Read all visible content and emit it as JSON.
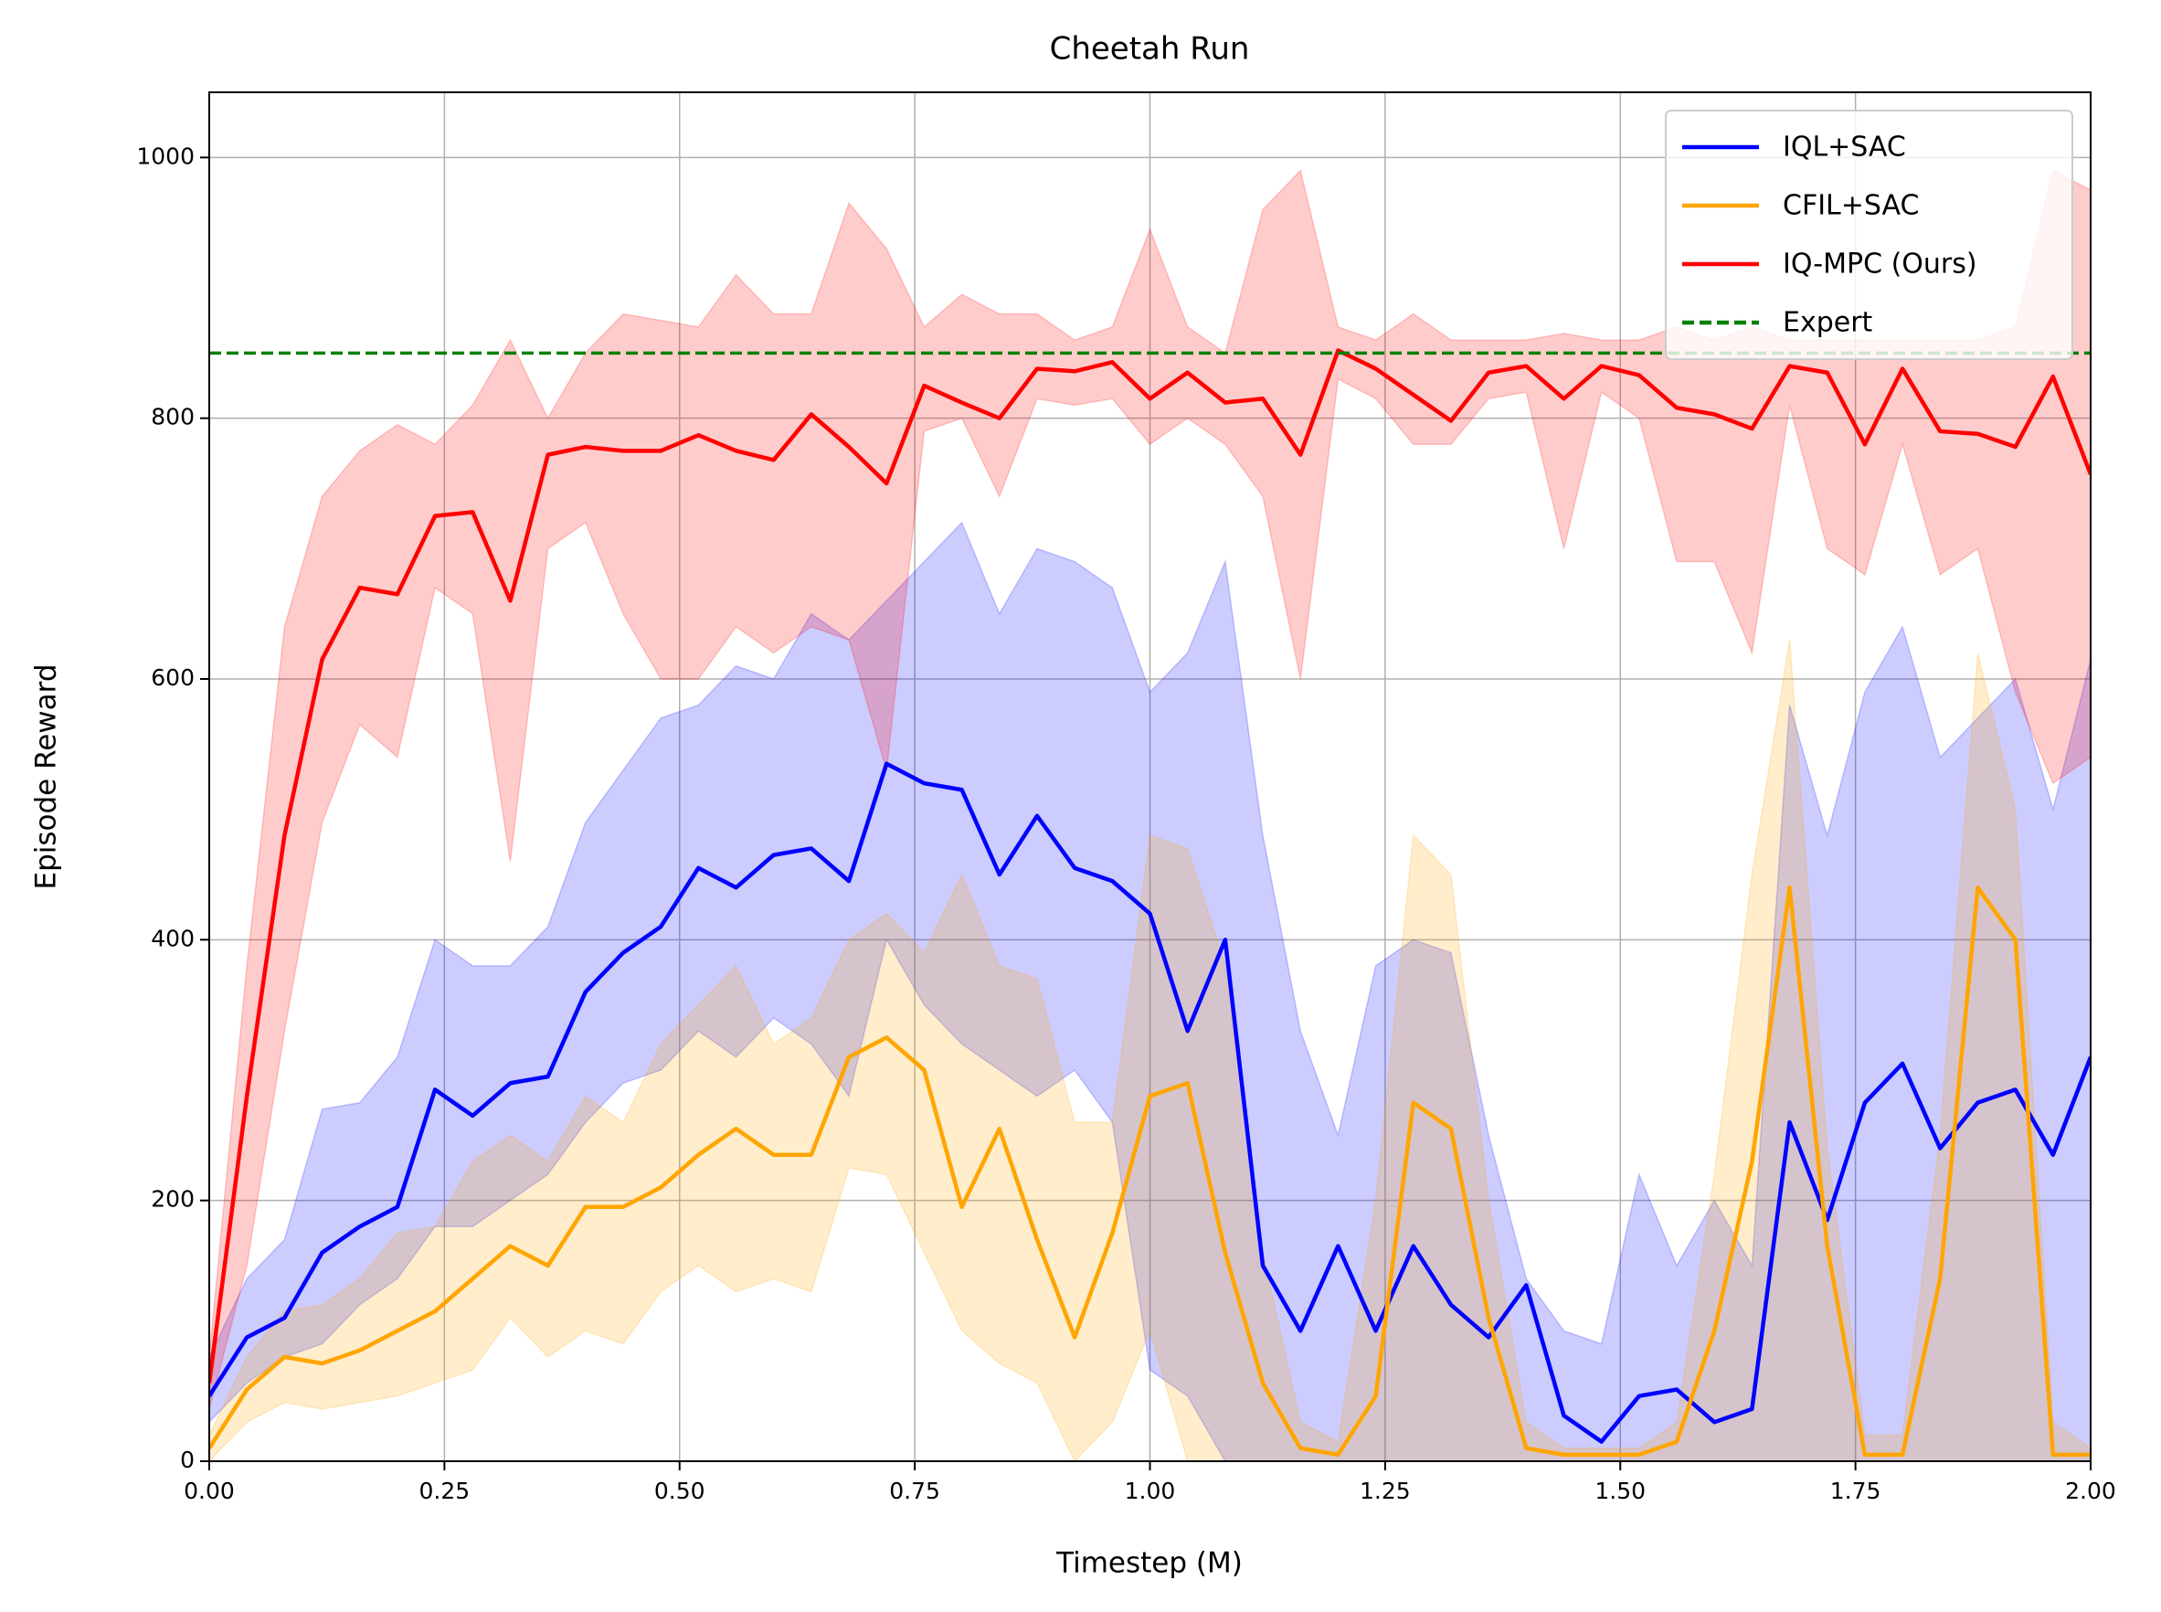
{
  "chart_data": {
    "type": "line",
    "title": "Cheetah Run",
    "xlabel": "Timestep (M)",
    "ylabel": "Episode Reward",
    "x": [
      0,
      0.04,
      0.08,
      0.12,
      0.16,
      0.2,
      0.24,
      0.28,
      0.32,
      0.36,
      0.4,
      0.44,
      0.48,
      0.52,
      0.56,
      0.6,
      0.64,
      0.68,
      0.72,
      0.76,
      0.8,
      0.84,
      0.88,
      0.92,
      0.96,
      1,
      1.04,
      1.08,
      1.12,
      1.16,
      1.2,
      1.24,
      1.28,
      1.32,
      1.36,
      1.4,
      1.44,
      1.48,
      1.52,
      1.56,
      1.6,
      1.64,
      1.68,
      1.72,
      1.76,
      1.8,
      1.84,
      1.88,
      1.92,
      1.96,
      2
    ],
    "series": [
      {
        "name": "IQL+SAC",
        "color": "#0000ff",
        "values": [
          50,
          95,
          110,
          160,
          180,
          195,
          285,
          265,
          290,
          295,
          360,
          390,
          410,
          455,
          440,
          465,
          470,
          445,
          535,
          520,
          515,
          450,
          495,
          455,
          445,
          420,
          330,
          400,
          150,
          100,
          165,
          100,
          165,
          120,
          95,
          135,
          35,
          15,
          50,
          55,
          30,
          40,
          260,
          185,
          275,
          305,
          240,
          275,
          285,
          235,
          310
        ],
        "lower": [
          30,
          60,
          80,
          90,
          120,
          140,
          180,
          180,
          200,
          220,
          260,
          290,
          300,
          330,
          310,
          340,
          320,
          280,
          400,
          350,
          320,
          300,
          280,
          300,
          260,
          70,
          50,
          0,
          0,
          0,
          0,
          0,
          0,
          0,
          0,
          0,
          0,
          0,
          0,
          0,
          0,
          0,
          0,
          0,
          0,
          0,
          0,
          0,
          0,
          0,
          0
        ],
        "upper": [
          80,
          140,
          170,
          270,
          275,
          310,
          400,
          380,
          380,
          410,
          490,
          530,
          570,
          580,
          610,
          600,
          650,
          630,
          660,
          690,
          720,
          650,
          700,
          690,
          670,
          590,
          620,
          690,
          480,
          330,
          250,
          380,
          400,
          390,
          250,
          140,
          100,
          90,
          220,
          150,
          200,
          150,
          580,
          480,
          590,
          640,
          540,
          570,
          600,
          500,
          615
        ]
      },
      {
        "name": "CFIL+SAC",
        "color": "#ffa500",
        "values": [
          10,
          55,
          80,
          75,
          85,
          100,
          115,
          140,
          165,
          150,
          195,
          195,
          210,
          235,
          255,
          235,
          235,
          310,
          325,
          300,
          195,
          255,
          170,
          95,
          175,
          280,
          290,
          160,
          60,
          10,
          5,
          50,
          275,
          255,
          110,
          10,
          5,
          5,
          5,
          15,
          100,
          230,
          440,
          165,
          5,
          5,
          140,
          440,
          400,
          5,
          5
        ],
        "lower": [
          0,
          30,
          45,
          40,
          45,
          50,
          60,
          70,
          110,
          80,
          100,
          90,
          130,
          150,
          130,
          140,
          130,
          225,
          220,
          160,
          100,
          75,
          60,
          0,
          30,
          100,
          0,
          0,
          0,
          0,
          0,
          0,
          0,
          0,
          0,
          0,
          0,
          0,
          0,
          0,
          0,
          0,
          0,
          0,
          0,
          0,
          0,
          0,
          0,
          0,
          0
        ],
        "upper": [
          20,
          80,
          115,
          120,
          140,
          175,
          180,
          230,
          250,
          230,
          280,
          260,
          320,
          350,
          380,
          320,
          340,
          400,
          420,
          390,
          450,
          380,
          370,
          260,
          260,
          480,
          470,
          380,
          160,
          30,
          15,
          200,
          480,
          450,
          200,
          30,
          10,
          10,
          10,
          30,
          220,
          450,
          630,
          240,
          20,
          20,
          250,
          620,
          500,
          30,
          10
        ]
      },
      {
        "name": "IQ-MPC (Ours)",
        "color": "#ff0000",
        "values": [
          60,
          280,
          480,
          615,
          670,
          665,
          725,
          728,
          660,
          772,
          778,
          775,
          775,
          787,
          775,
          768,
          803,
          778,
          750,
          825,
          812,
          800,
          838,
          836,
          843,
          815,
          835,
          812,
          815,
          772,
          852,
          838,
          818,
          798,
          835,
          840,
          815,
          840,
          833,
          808,
          803,
          792,
          840,
          835,
          780,
          838,
          790,
          788,
          778,
          832,
          757
        ],
        "lower": [
          40,
          150,
          330,
          490,
          565,
          540,
          670,
          650,
          460,
          700,
          720,
          650,
          600,
          600,
          640,
          620,
          640,
          630,
          530,
          790,
          800,
          740,
          815,
          810,
          815,
          780,
          800,
          780,
          740,
          600,
          830,
          815,
          780,
          780,
          815,
          820,
          700,
          820,
          800,
          690,
          690,
          620,
          810,
          700,
          680,
          780,
          680,
          700,
          590,
          520,
          540
        ],
        "upper": [
          80,
          380,
          640,
          740,
          775,
          795,
          780,
          810,
          860,
          800,
          850,
          880,
          875,
          870,
          910,
          880,
          880,
          965,
          930,
          870,
          895,
          880,
          880,
          860,
          870,
          945,
          870,
          850,
          960,
          990,
          870,
          860,
          880,
          860,
          860,
          860,
          865,
          860,
          860,
          870,
          860,
          870,
          860,
          860,
          860,
          860,
          860,
          860,
          870,
          990,
          975
        ]
      }
    ],
    "reference_line": {
      "name": "Expert",
      "value": 850,
      "color": "#008000",
      "dashed": true
    },
    "xlim": [
      0,
      2
    ],
    "ylim": [
      0,
      1050
    ],
    "xticks": [
      {
        "value": 0,
        "label": "0.00"
      },
      {
        "value": 0.25,
        "label": "0.25"
      },
      {
        "value": 0.5,
        "label": "0.50"
      },
      {
        "value": 0.75,
        "label": "0.75"
      },
      {
        "value": 1,
        "label": "1.00"
      },
      {
        "value": 1.25,
        "label": "1.25"
      },
      {
        "value": 1.5,
        "label": "1.50"
      },
      {
        "value": 1.75,
        "label": "1.75"
      },
      {
        "value": 2,
        "label": "2.00"
      }
    ],
    "yticks": [
      0,
      200,
      400,
      600,
      800,
      1000
    ],
    "grid": true,
    "legend": "upper right"
  }
}
